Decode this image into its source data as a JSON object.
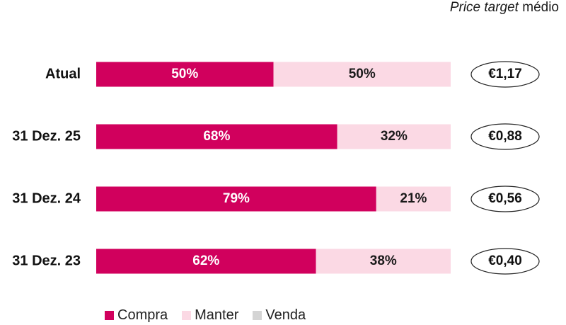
{
  "header": {
    "italic": "Price target",
    "rest": " médio"
  },
  "chart_data": {
    "type": "bar",
    "orientation": "horizontal",
    "stacked": true,
    "categories": [
      "Atual",
      "31 Dez. 25",
      "31 Dez. 24",
      "31 Dez. 23"
    ],
    "series": [
      {
        "name": "Compra",
        "values": [
          50,
          68,
          79,
          62
        ],
        "labels": [
          "50%",
          "68%",
          "79%",
          "62%"
        ],
        "color": "#d1005d",
        "label_color": "#ffffff"
      },
      {
        "name": "Manter",
        "values": [
          50,
          32,
          21,
          38
        ],
        "labels": [
          "50%",
          "32%",
          "21%",
          "38%"
        ],
        "color": "#fbd9e4",
        "label_color": "#1a1a1a"
      },
      {
        "name": "Venda",
        "values": [
          0,
          0,
          0,
          0
        ],
        "labels": [
          "",
          "",
          "",
          ""
        ],
        "color": "#d4d4d4",
        "label_color": "#1a1a1a"
      }
    ],
    "xlim": [
      0,
      100
    ],
    "price_targets": [
      "€1,17",
      "€0,88",
      "€0,56",
      "€0,40"
    ],
    "legend_position": "bottom"
  }
}
